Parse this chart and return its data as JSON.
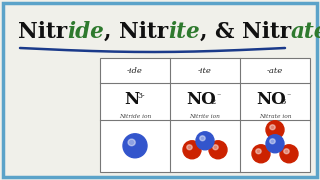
{
  "bg_color": "#f0f0ea",
  "border_color": "#5ba3c9",
  "underline_color": "#1a3a8a",
  "col_headers": [
    "-ide",
    "-ite",
    "-ate"
  ],
  "ion_names": [
    "Nitride ion",
    "Nitrite ion",
    "Nitrate ion"
  ],
  "n_color": "#3355cc",
  "o_color": "#cc2200",
  "title_black": "#111111",
  "title_green": "#2e7a2e"
}
